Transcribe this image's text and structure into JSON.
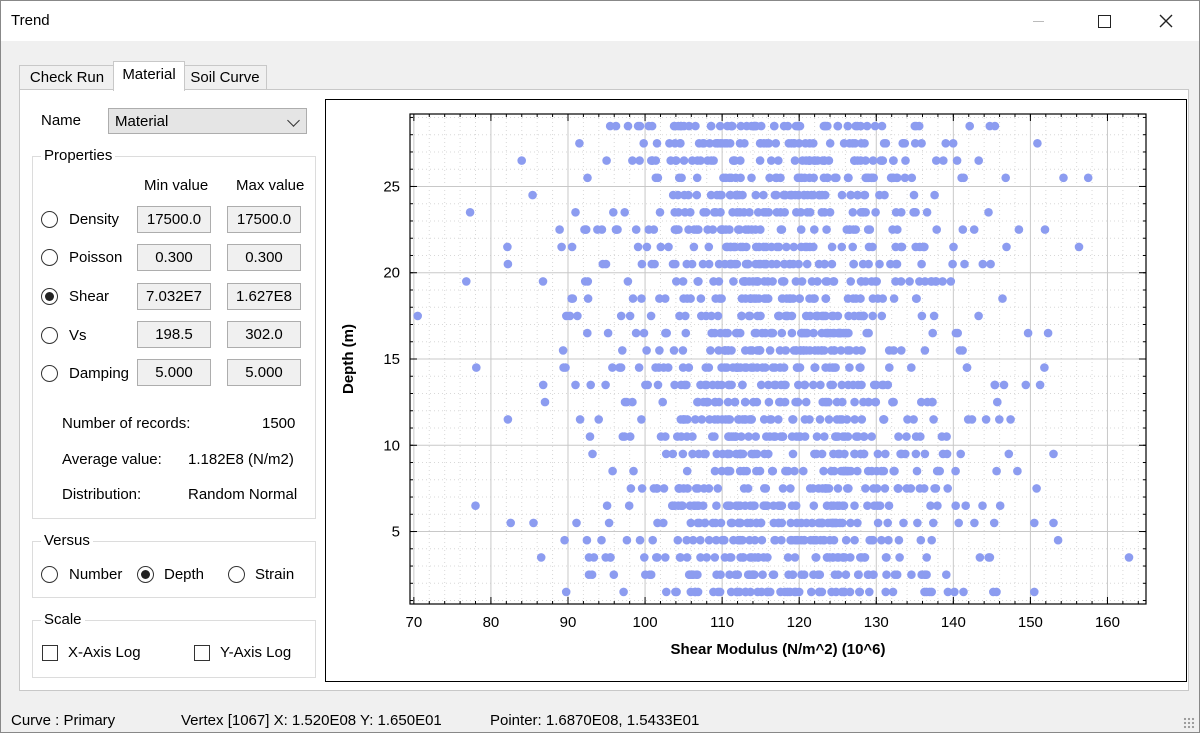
{
  "window": {
    "title": "Trend"
  },
  "tabs": [
    {
      "label": "Check Run"
    },
    {
      "label": "Material"
    },
    {
      "label": "Soil Curve"
    }
  ],
  "active_tab": "Material",
  "name_field": {
    "label": "Name",
    "value": "Material"
  },
  "properties": {
    "title": "Properties",
    "min_header": "Min value",
    "max_header": "Max value",
    "rows": [
      {
        "label": "Density",
        "min": "17500.0",
        "max": "17500.0",
        "selected": false
      },
      {
        "label": "Poisson",
        "min": "0.300",
        "max": "0.300",
        "selected": false
      },
      {
        "label": "Shear",
        "min": "7.032E7",
        "max": "1.627E8",
        "selected": true
      },
      {
        "label": "Vs",
        "min": "198.5",
        "max": "302.0",
        "selected": false
      },
      {
        "label": "Damping",
        "min": "5.000",
        "max": "5.000",
        "selected": false
      }
    ],
    "stats": {
      "records_label": "Number of records:",
      "records_value": "1500",
      "average_label": "Average value:",
      "average_value": "1.182E8 (N/m2)",
      "distribution_label": "Distribution:",
      "distribution_value": "Random Normal"
    }
  },
  "versus": {
    "title": "Versus",
    "options": [
      {
        "label": "Number",
        "selected": false
      },
      {
        "label": "Depth",
        "selected": true
      },
      {
        "label": "Strain",
        "selected": false
      }
    ]
  },
  "scale": {
    "title": "Scale",
    "x_log": {
      "label": "X-Axis Log",
      "checked": false
    },
    "y_log": {
      "label": "Y-Axis Log",
      "checked": false
    }
  },
  "chart_data": {
    "type": "scatter",
    "xlabel": "Shear Modulus (N/m^2) (10^6)",
    "ylabel": "Depth (m)",
    "xlim": [
      69.5,
      165
    ],
    "ylim": [
      0.8,
      29.2
    ],
    "xticks": [
      70,
      80,
      90,
      100,
      110,
      120,
      130,
      140,
      150,
      160
    ],
    "yticks": [
      5,
      10,
      15,
      20,
      25
    ],
    "grid": true,
    "marker_color": "#8c9cf0",
    "depth_levels": [
      1.5,
      2.5,
      3.5,
      4.5,
      5.5,
      6.5,
      7.5,
      8.5,
      9.5,
      10.5,
      11.5,
      12.5,
      13.5,
      14.5,
      15.5,
      16.5,
      17.5,
      18.5,
      19.5,
      20.5,
      21.5,
      22.5,
      23.5,
      24.5,
      25.5,
      26.5,
      27.5,
      28.5
    ],
    "outliers": [
      {
        "x": 70.5,
        "y": 17.5
      },
      {
        "x": 76.8,
        "y": 19.5
      },
      {
        "x": 77.3,
        "y": 23.5
      },
      {
        "x": 78.1,
        "y": 14.5
      },
      {
        "x": 78.0,
        "y": 6.5
      },
      {
        "x": 82.2,
        "y": 20.5
      },
      {
        "x": 82.2,
        "y": 11.5
      },
      {
        "x": 84.0,
        "y": 26.5
      },
      {
        "x": 162.8,
        "y": 3.5
      },
      {
        "x": 157.5,
        "y": 25.5
      },
      {
        "x": 156.3,
        "y": 21.5
      },
      {
        "x": 154.3,
        "y": 25.5
      },
      {
        "x": 153.6,
        "y": 4.5
      },
      {
        "x": 152.3,
        "y": 16.5
      },
      {
        "x": 151.9,
        "y": 22.5
      },
      {
        "x": 150.5,
        "y": 5.5
      },
      {
        "x": 150.8,
        "y": 7.5
      },
      {
        "x": 149.4,
        "y": 13.5
      },
      {
        "x": 147.2,
        "y": 9.5
      },
      {
        "x": 145.6,
        "y": 1.5
      }
    ],
    "dense_range": [
      84,
      152
    ],
    "record_count": 1500
  },
  "status": {
    "curve": "Curve : Primary",
    "vertex": "Vertex [1067]  X: 1.520E08 Y: 1.650E01",
    "pointer": "Pointer: 1.6870E08, 1.5433E01"
  }
}
